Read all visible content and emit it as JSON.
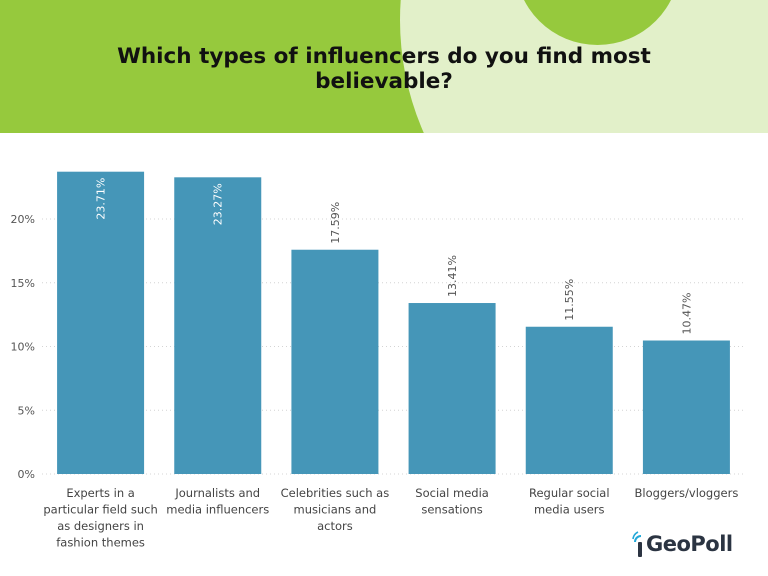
{
  "header": {
    "title": "Which types of influencers do you find most believable?"
  },
  "logo": {
    "text": "GeoPoll"
  },
  "colors": {
    "header_bg": "#96c93d",
    "header_circle": "#e2f0c9",
    "bar": "#4596b8",
    "logo_accent": "#22a8d8"
  },
  "chart_data": {
    "type": "bar",
    "categories": [
      "Experts in a particular field such as designers in fashion themes",
      "Journalists and media influencers",
      "Celebrities such as musicians and actors",
      "Social media sensations",
      "Regular social media users",
      "Bloggers/vloggers"
    ],
    "category_lines": [
      [
        "Experts in a",
        "particular field such",
        "as designers in",
        "fashion themes"
      ],
      [
        "Journalists and",
        "media influencers"
      ],
      [
        "Celebrities such as",
        "musicians and",
        "actors"
      ],
      [
        "Social media",
        "sensations"
      ],
      [
        "Regular social",
        "media users"
      ],
      [
        "Bloggers/vloggers"
      ]
    ],
    "values": [
      23.71,
      23.27,
      17.59,
      13.41,
      11.55,
      10.47
    ],
    "data_labels": [
      "23.71%",
      "23.27%",
      "17.59%",
      "13.41%",
      "11.55%",
      "10.47%"
    ],
    "yticks": [
      0,
      5,
      10,
      15,
      20
    ],
    "ytick_labels": [
      "0%",
      "5%",
      "10%",
      "15%",
      "20%"
    ],
    "ylim": [
      0,
      25
    ],
    "grid": true,
    "xlabel": "",
    "ylabel": ""
  }
}
